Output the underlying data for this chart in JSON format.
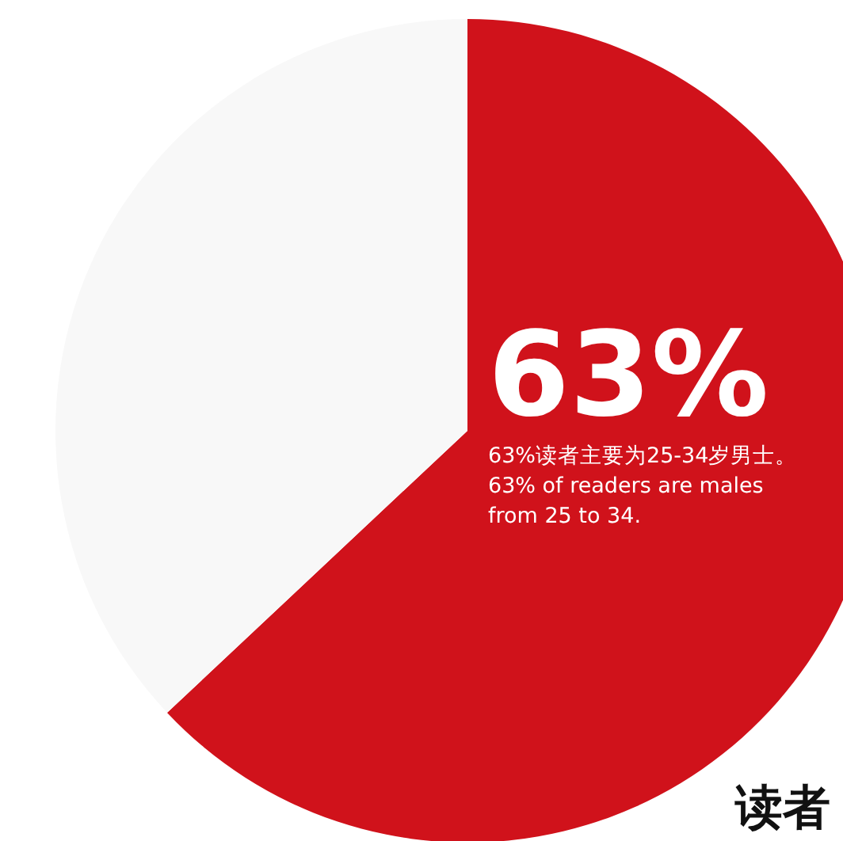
{
  "chart_data": {
    "type": "pie",
    "title": "读者",
    "categories": [
      null,
      null
    ],
    "values": [
      63,
      37
    ],
    "colors": [
      "#d0121b",
      "#f8f8f8"
    ],
    "value_labels": [
      "63%",
      null
    ],
    "annotations": [
      "63%读者主要为25-34岁男士。",
      "63% of readers are males from 25 to 34."
    ]
  }
}
